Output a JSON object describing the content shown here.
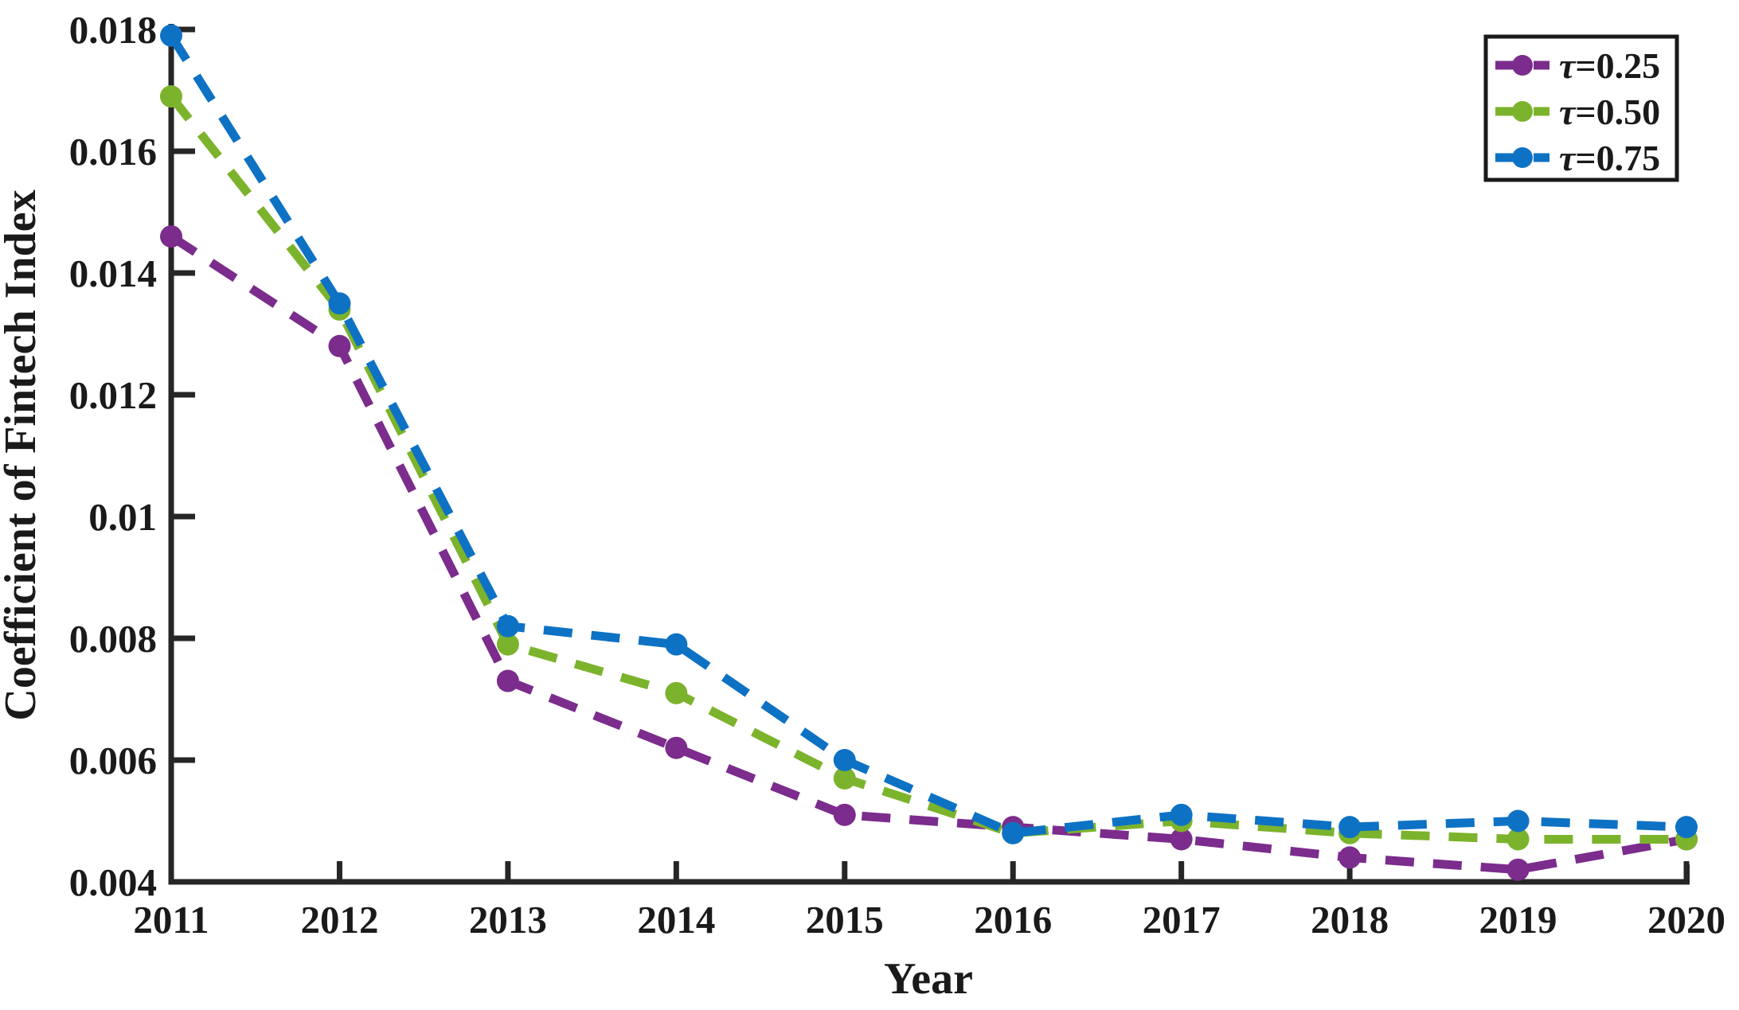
{
  "figure": {
    "background": "#ffffff",
    "axis_color": "#262626",
    "text_color": "#1a1a1a",
    "legend_border_color": "#1a1a1a",
    "legend_background": "#ffffff"
  },
  "chart_data": {
    "type": "line",
    "title": "",
    "xlabel": "Year",
    "ylabel": "Coefficient of Fintech Index",
    "x": [
      2011,
      2012,
      2013,
      2014,
      2015,
      2016,
      2017,
      2018,
      2019,
      2020
    ],
    "x_tick_labels": [
      "2011",
      "2012",
      "2013",
      "2014",
      "2015",
      "2016",
      "2017",
      "2018",
      "2019",
      "2020"
    ],
    "xlim": [
      2011,
      2020
    ],
    "ylim": [
      0.004,
      0.018
    ],
    "yticks": [
      0.004,
      0.006,
      0.008,
      0.01,
      0.012,
      0.014,
      0.016,
      0.018
    ],
    "ytick_labels": [
      "0.004",
      "0.006",
      "0.008",
      "0.01",
      "0.012",
      "0.014",
      "0.016",
      "0.018"
    ],
    "grid": false,
    "line_style": "dashed",
    "marker": "circle",
    "legend_position": "top-right",
    "series": [
      {
        "name": "τ=0.25",
        "color": "#7B2C8C",
        "values": [
          0.0146,
          0.0128,
          0.0073,
          0.0062,
          0.0051,
          0.0049,
          0.0047,
          0.0044,
          0.0042,
          0.0047
        ]
      },
      {
        "name": "τ=0.50",
        "color": "#7CB32C",
        "values": [
          0.0169,
          0.0134,
          0.0079,
          0.0071,
          0.0057,
          0.0048,
          0.005,
          0.0048,
          0.0047,
          0.0047
        ]
      },
      {
        "name": "τ=0.75",
        "color": "#0E72C4",
        "values": [
          0.0179,
          0.0135,
          0.0082,
          0.0079,
          0.006,
          0.0048,
          0.0051,
          0.0049,
          0.005,
          0.0049
        ]
      }
    ]
  }
}
